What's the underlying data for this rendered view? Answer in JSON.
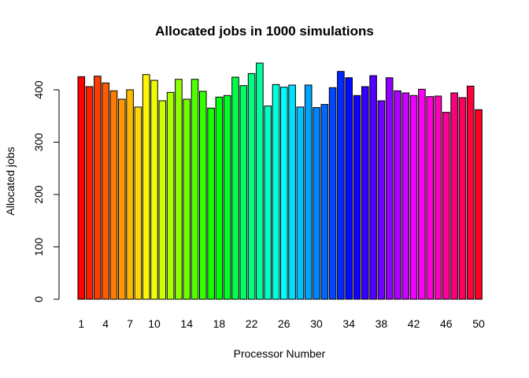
{
  "chart_data": {
    "type": "bar",
    "title": "Allocated jobs in 1000 simulations",
    "xlabel": "Processor Number",
    "ylabel": "Allocated jobs",
    "ylim": [
      0,
      460
    ],
    "y_ticks": [
      "0",
      "100",
      "200",
      "300",
      "400"
    ],
    "x_tick_labels": [
      "1",
      "4",
      "7",
      "10",
      "14",
      "18",
      "22",
      "26",
      "30",
      "34",
      "38",
      "42",
      "46",
      "50"
    ],
    "categories": [
      "1",
      "2",
      "3",
      "4",
      "5",
      "6",
      "7",
      "8",
      "9",
      "10",
      "11",
      "12",
      "13",
      "14",
      "15",
      "16",
      "17",
      "18",
      "19",
      "20",
      "21",
      "22",
      "23",
      "24",
      "25",
      "26",
      "27",
      "28",
      "29",
      "30",
      "31",
      "32",
      "33",
      "34",
      "35",
      "36",
      "37",
      "38",
      "39",
      "40",
      "41",
      "42",
      "43",
      "44",
      "45",
      "46",
      "47",
      "48",
      "49",
      "50"
    ],
    "values": [
      425,
      406,
      426,
      413,
      398,
      382,
      400,
      367,
      429,
      418,
      379,
      395,
      420,
      382,
      420,
      397,
      365,
      386,
      389,
      424,
      408,
      431,
      451,
      369,
      410,
      405,
      409,
      367,
      409,
      366,
      372,
      404,
      435,
      423,
      389,
      406,
      427,
      379,
      423,
      398,
      394,
      389,
      401,
      387,
      388,
      357,
      394,
      385,
      407,
      362
    ],
    "colors": [
      "#FF0000",
      "#FF1F00",
      "#FF3D00",
      "#FF5C00",
      "#FF7A00",
      "#FF9900",
      "#FFB800",
      "#FFD600",
      "#FFF500",
      "#EBFF00",
      "#CCFF00",
      "#ADFF00",
      "#8FFF00",
      "#70FF00",
      "#52FF00",
      "#33FF00",
      "#14FF00",
      "#00FF0A",
      "#00FF29",
      "#00FF47",
      "#00FF66",
      "#00FF85",
      "#00FFA3",
      "#00FFC2",
      "#00FFE0",
      "#00FFFF",
      "#00E0FF",
      "#00C2FF",
      "#00A3FF",
      "#0085FF",
      "#0066FF",
      "#0047FF",
      "#0029FF",
      "#000AFF",
      "#1400FF",
      "#3300FF",
      "#5200FF",
      "#7000FF",
      "#8F00FF",
      "#AD00FF",
      "#CC00FF",
      "#EB00FF",
      "#FF00F5",
      "#FF00D6",
      "#FF00B8",
      "#FF0099",
      "#FF007A",
      "#FF005C",
      "#FF003D",
      "#FF001F"
    ],
    "grid": false,
    "legend": "none"
  }
}
